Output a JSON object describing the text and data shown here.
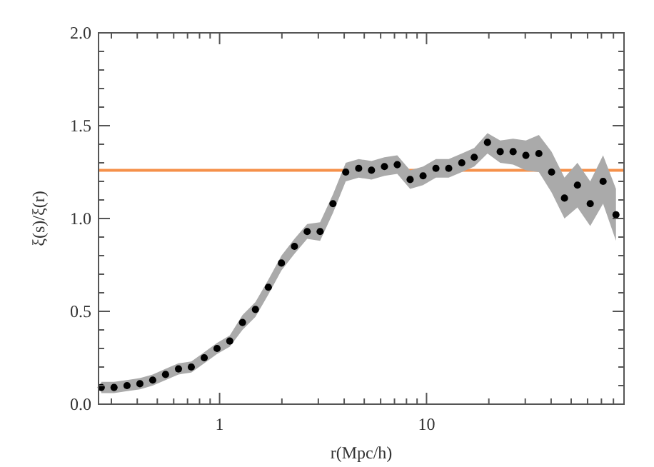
{
  "chart_data": {
    "type": "scatter",
    "xlabel": "r(Mpc/h)",
    "ylabel": "ξ(s)/ξ(r)",
    "log": "x",
    "marker": "circle",
    "xlim": [
      0.26,
      90
    ],
    "ylim": [
      0,
      2
    ],
    "xticks": [
      {
        "value": 0.3,
        "label": null
      },
      {
        "value": 0.4,
        "label": null
      },
      {
        "value": 0.5,
        "label": null
      },
      {
        "value": 0.6,
        "label": null
      },
      {
        "value": 0.7,
        "label": null
      },
      {
        "value": 0.8,
        "label": null
      },
      {
        "value": 0.9,
        "label": null
      },
      1,
      {
        "value": 2,
        "label": null
      },
      {
        "value": 3,
        "label": null
      },
      {
        "value": 4,
        "label": null
      },
      {
        "value": 5,
        "label": null
      },
      {
        "value": 6,
        "label": null
      },
      {
        "value": 7,
        "label": null
      },
      {
        "value": 8,
        "label": null
      },
      {
        "value": 9,
        "label": null
      },
      10,
      {
        "value": 20,
        "label": null
      },
      {
        "value": 30,
        "label": null
      },
      {
        "value": 40,
        "label": null
      },
      {
        "value": 50,
        "label": null
      },
      {
        "value": 60,
        "label": null
      },
      {
        "value": 70,
        "label": null
      },
      {
        "value": 80,
        "label": null
      },
      {
        "value": 90,
        "label": null
      }
    ],
    "yticks": [
      {
        "value": 0,
        "label": "0.0"
      },
      {
        "value": 0.1,
        "label": null
      },
      {
        "value": 0.2,
        "label": null
      },
      {
        "value": 0.3,
        "label": null
      },
      {
        "value": 0.4,
        "label": null
      },
      {
        "value": 0.5,
        "label": "0.5"
      },
      {
        "value": 0.6,
        "label": null
      },
      {
        "value": 0.7,
        "label": null
      },
      {
        "value": 0.8,
        "label": null
      },
      {
        "value": 0.9,
        "label": null
      },
      {
        "value": 1,
        "label": "1.0"
      },
      {
        "value": 1.1,
        "label": null
      },
      {
        "value": 1.2,
        "label": null
      },
      {
        "value": 1.3,
        "label": null
      },
      {
        "value": 1.4,
        "label": null
      },
      {
        "value": 1.5,
        "label": "1.5"
      },
      {
        "value": 1.6,
        "label": null
      },
      {
        "value": 1.7,
        "label": null
      },
      {
        "value": 1.8,
        "label": null
      },
      {
        "value": 1.9,
        "label": null
      },
      {
        "value": 2,
        "label": "2.0"
      }
    ],
    "ref_lines": [
      {
        "axis": "y",
        "value": 1.26,
        "color": "#f5904a"
      }
    ],
    "series": [
      {
        "color": "#000000",
        "x": [
          0.268,
          0.309,
          0.357,
          0.412,
          0.475,
          0.548,
          0.633,
          0.73,
          0.843,
          0.972,
          1.12,
          1.29,
          1.49,
          1.72,
          1.99,
          2.3,
          2.65,
          3.06,
          3.53,
          4.07,
          4.7,
          5.42,
          6.26,
          7.22,
          8.33,
          9.62,
          11.1,
          12.8,
          14.8,
          17,
          19.7,
          22.7,
          26.2,
          30.2,
          34.9,
          40.2,
          46.4,
          53.6,
          61.8,
          71.3,
          82.3
        ],
        "values": [
          0.09,
          0.09,
          0.1,
          0.11,
          0.13,
          0.16,
          0.19,
          0.2,
          0.25,
          0.3,
          0.34,
          0.44,
          0.51,
          0.63,
          0.76,
          0.85,
          0.93,
          0.93,
          1.08,
          1.25,
          1.27,
          1.26,
          1.28,
          1.29,
          1.21,
          1.23,
          1.27,
          1.27,
          1.3,
          1.33,
          1.41,
          1.36,
          1.36,
          1.34,
          1.35,
          1.25,
          1.11,
          1.18,
          1.08,
          1.2,
          1.02
        ],
        "lower": [
          0.06,
          0.06,
          0.07,
          0.08,
          0.1,
          0.13,
          0.16,
          0.17,
          0.22,
          0.27,
          0.31,
          0.4,
          0.47,
          0.59,
          0.72,
          0.81,
          0.89,
          0.88,
          1.03,
          1.2,
          1.22,
          1.21,
          1.23,
          1.24,
          1.16,
          1.18,
          1.22,
          1.22,
          1.25,
          1.28,
          1.35,
          1.3,
          1.29,
          1.26,
          1.25,
          1.14,
          1.0,
          1.06,
          0.96,
          1.08,
          0.88
        ],
        "upper": [
          0.12,
          0.12,
          0.13,
          0.14,
          0.16,
          0.19,
          0.22,
          0.23,
          0.28,
          0.33,
          0.37,
          0.48,
          0.55,
          0.67,
          0.8,
          0.89,
          0.97,
          0.98,
          1.13,
          1.3,
          1.32,
          1.31,
          1.33,
          1.34,
          1.26,
          1.28,
          1.32,
          1.32,
          1.35,
          1.38,
          1.46,
          1.42,
          1.43,
          1.42,
          1.45,
          1.36,
          1.22,
          1.3,
          1.2,
          1.34,
          1.16
        ]
      }
    ]
  }
}
